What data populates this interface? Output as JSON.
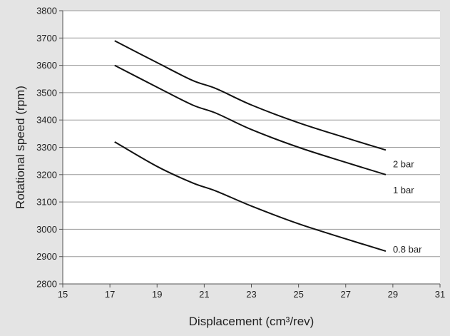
{
  "chart_data": {
    "type": "line",
    "title": "",
    "xlabel": "Displacement (cm³/rev)",
    "ylabel": "Rotational speed (rpm)",
    "xlim": [
      15,
      31
    ],
    "ylim": [
      2800,
      3800
    ],
    "xticks": [
      15,
      17,
      19,
      21,
      23,
      25,
      27,
      29,
      31
    ],
    "yticks": [
      2800,
      2900,
      3000,
      3100,
      3200,
      3300,
      3400,
      3500,
      3600,
      3700,
      3800
    ],
    "grid": "horizontal",
    "legend": "none (series labelled at line ends)",
    "series": [
      {
        "name": "2 bar",
        "x": [
          17.2,
          19,
          20.5,
          21.5,
          23,
          25,
          27,
          28.7
        ],
        "y": [
          3690,
          3610,
          3545,
          3515,
          3455,
          3390,
          3335,
          3290
        ]
      },
      {
        "name": "1 bar",
        "x": [
          17.2,
          19,
          20.5,
          21.5,
          23,
          25,
          27,
          28.7
        ],
        "y": [
          3600,
          3520,
          3455,
          3425,
          3365,
          3300,
          3245,
          3200
        ]
      },
      {
        "name": "0.8 bar",
        "x": [
          17.2,
          19,
          20.5,
          21.5,
          23,
          25,
          27,
          28.7
        ],
        "y": [
          3320,
          3230,
          3170,
          3140,
          3085,
          3020,
          2965,
          2920
        ]
      }
    ],
    "colors": {
      "background": "#e4e4e4",
      "plot_area": "#ffffff",
      "grid": "#9a9a9a",
      "line": "#111111"
    }
  }
}
